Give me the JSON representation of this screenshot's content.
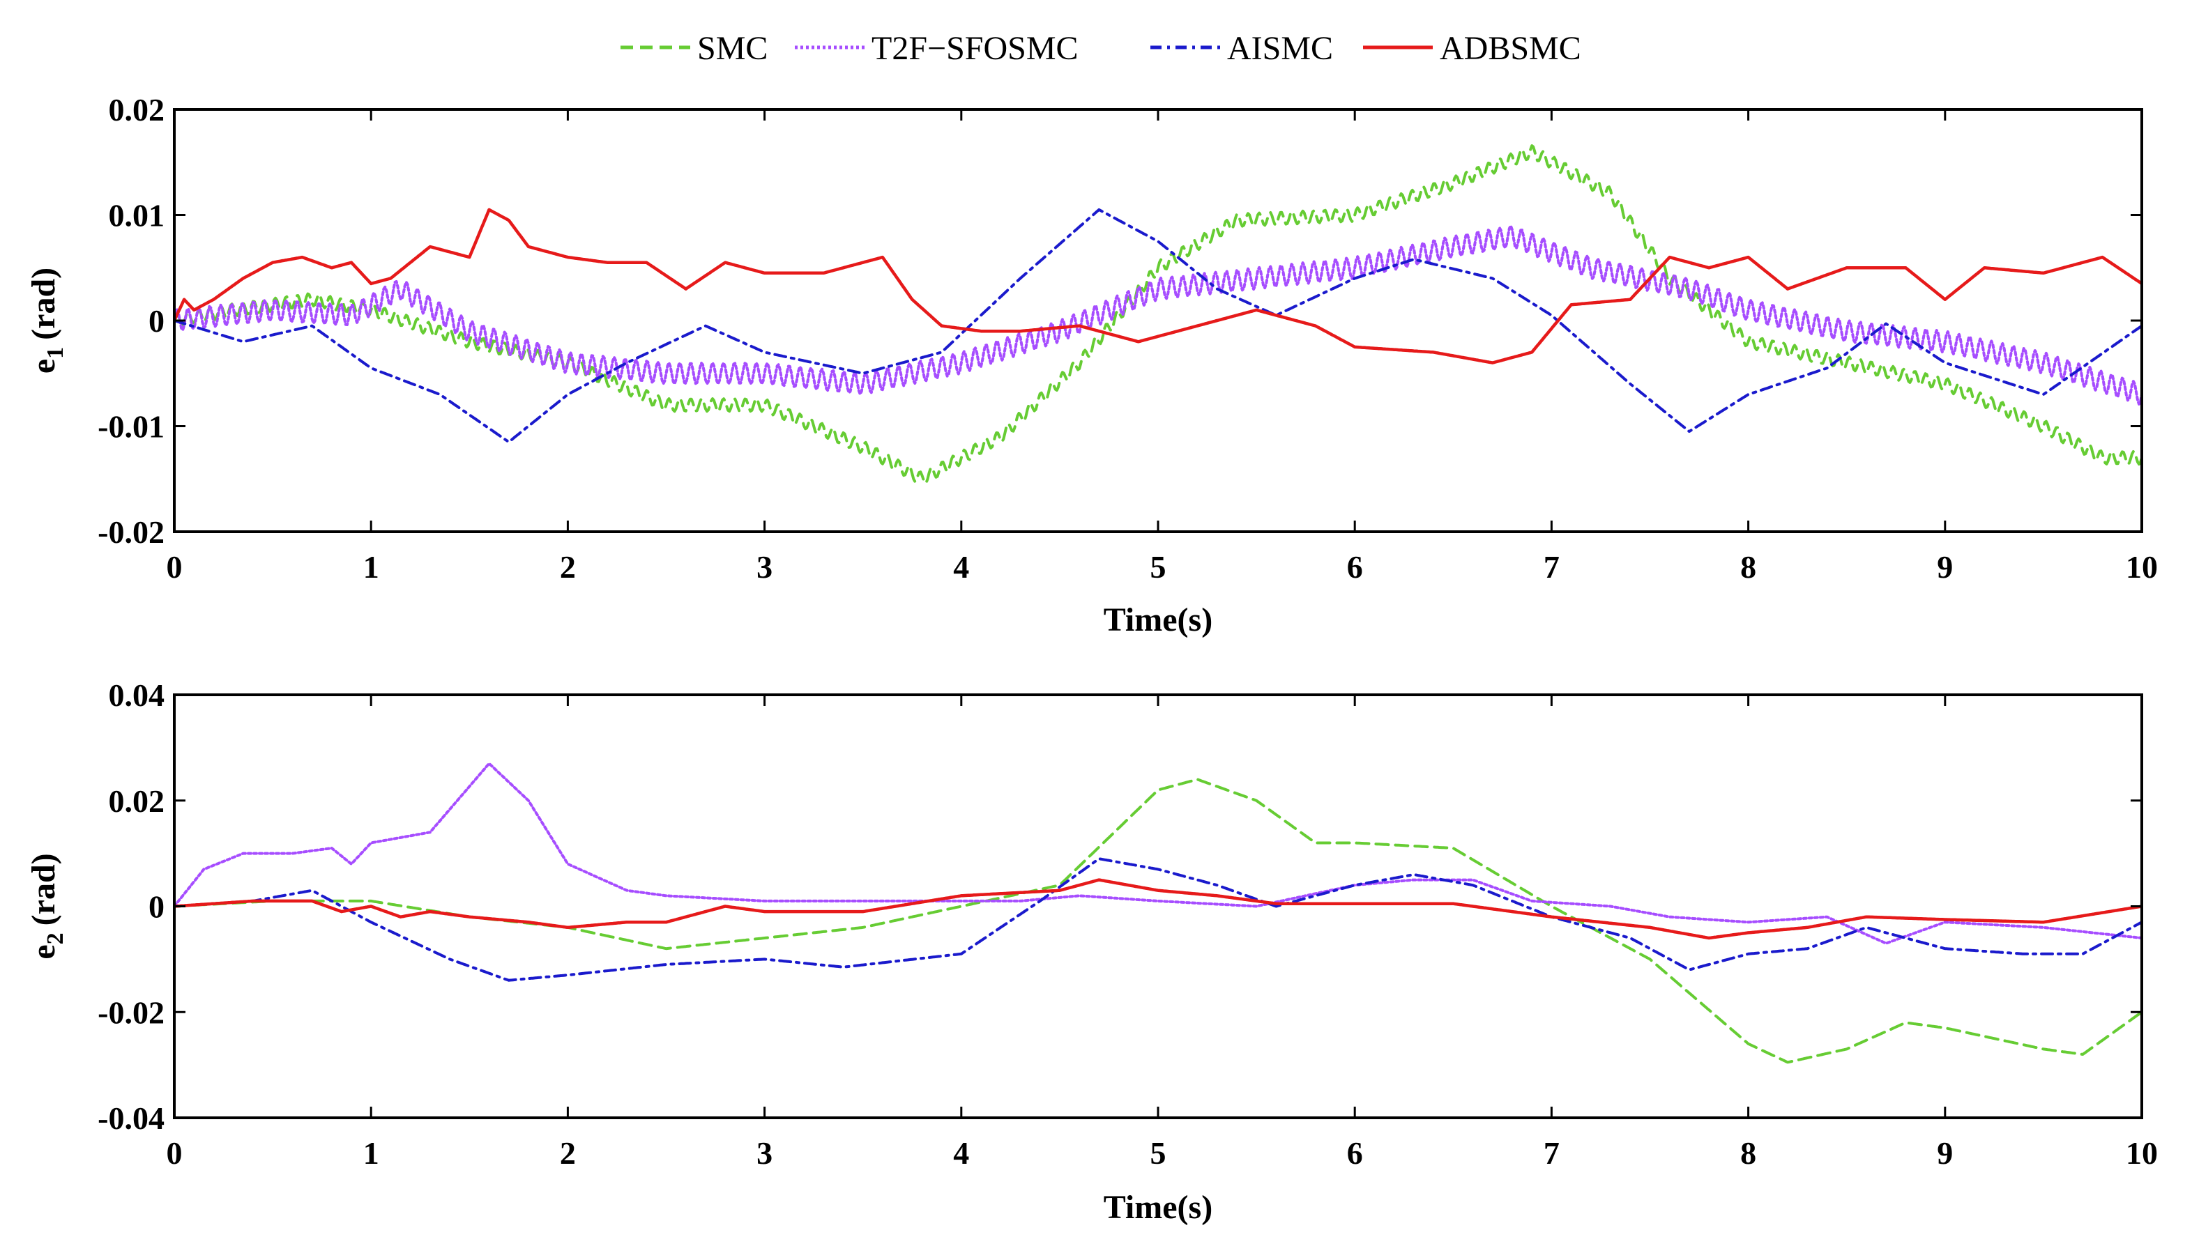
{
  "legend": [
    {
      "name": "SMC",
      "color": "#66cc33",
      "dash": "18,10"
    },
    {
      "name": "T2F−SFOSMC",
      "color": "#a64dff",
      "dash": "4,4"
    },
    {
      "name": "AISMC",
      "color": "#1a1acc",
      "dash": "16,8,4,8"
    },
    {
      "name": "ADBSMC",
      "color": "#e61a1a",
      "dash": ""
    }
  ],
  "chart_data": [
    {
      "type": "line",
      "id": "e1",
      "title": "",
      "xlabel": "Time(s)",
      "ylabel": "e",
      "ylabel_sub": "1",
      "ylabel_unit": "(rad)",
      "xlim": [
        0,
        10
      ],
      "ylim": [
        -0.02,
        0.02
      ],
      "xticks": [
        0,
        1,
        2,
        3,
        4,
        5,
        6,
        7,
        8,
        9,
        10
      ],
      "yticks": [
        -0.02,
        -0.01,
        0,
        0.01,
        0.02
      ],
      "ytick_labels": [
        "-0.02",
        "-0.01",
        "0",
        "0.01",
        "0.02"
      ],
      "series": [
        {
          "name": "SMC",
          "ripple": 0.0006,
          "x": [
            0,
            0.3,
            0.7,
            1.0,
            1.5,
            2.0,
            2.5,
            3.0,
            3.5,
            3.8,
            4.2,
            4.6,
            5.0,
            5.4,
            6.0,
            6.5,
            6.9,
            7.3,
            7.6,
            8.0,
            8.5,
            9.0,
            9.5,
            9.8,
            10.0
          ],
          "y": [
            0,
            0.001,
            0.002,
            0.001,
            -0.002,
            -0.004,
            -0.008,
            -0.008,
            -0.012,
            -0.015,
            -0.011,
            -0.004,
            0.005,
            0.0095,
            0.01,
            0.013,
            0.016,
            0.012,
            0.004,
            -0.002,
            -0.004,
            -0.006,
            -0.01,
            -0.013,
            -0.013
          ]
        },
        {
          "name": "T2F−SFOSMC",
          "ripple": 0.001,
          "x": [
            0,
            0.5,
            0.9,
            1.15,
            1.5,
            2.0,
            2.5,
            3.0,
            3.5,
            4.0,
            4.5,
            5.0,
            5.5,
            6.0,
            6.5,
            6.8,
            7.2,
            7.7,
            8.0,
            8.5,
            9.0,
            9.5,
            10.0
          ],
          "y": [
            0,
            0.001,
            0.0005,
            0.003,
            -0.001,
            -0.004,
            -0.005,
            -0.005,
            -0.006,
            -0.004,
            -0.001,
            0.003,
            0.004,
            0.005,
            0.007,
            0.008,
            0.005,
            0.003,
            0.001,
            -0.001,
            -0.002,
            -0.004,
            -0.007
          ]
        },
        {
          "name": "AISMC",
          "ripple": 0,
          "x": [
            0,
            0.35,
            0.7,
            1.0,
            1.35,
            1.7,
            2.0,
            2.3,
            2.7,
            3.0,
            3.5,
            3.9,
            4.3,
            4.7,
            5.0,
            5.3,
            5.6,
            6.0,
            6.3,
            6.7,
            7.0,
            7.4,
            7.7,
            8.0,
            8.4,
            8.7,
            9.0,
            9.5,
            10.0
          ],
          "y": [
            0,
            -0.002,
            -0.0005,
            -0.0045,
            -0.007,
            -0.0115,
            -0.007,
            -0.004,
            -0.0005,
            -0.003,
            -0.005,
            -0.003,
            0.004,
            0.0105,
            0.0075,
            0.003,
            0.0005,
            0.004,
            0.0058,
            0.004,
            0.0005,
            -0.006,
            -0.0105,
            -0.007,
            -0.0045,
            -0.0003,
            -0.004,
            -0.007,
            -0.0005
          ]
        },
        {
          "name": "ADBSMC",
          "ripple": 0,
          "x": [
            0,
            0.05,
            0.1,
            0.2,
            0.35,
            0.5,
            0.65,
            0.8,
            0.9,
            1.0,
            1.1,
            1.3,
            1.5,
            1.6,
            1.7,
            1.8,
            2.0,
            2.2,
            2.4,
            2.6,
            2.8,
            3.0,
            3.3,
            3.6,
            3.75,
            3.9,
            4.1,
            4.3,
            4.6,
            4.9,
            5.2,
            5.5,
            5.8,
            6.0,
            6.4,
            6.7,
            6.9,
            7.1,
            7.4,
            7.6,
            7.8,
            8.0,
            8.2,
            8.5,
            8.8,
            9.0,
            9.2,
            9.5,
            9.8,
            10.0
          ],
          "y": [
            0,
            0.002,
            0.001,
            0.002,
            0.004,
            0.0055,
            0.006,
            0.005,
            0.0055,
            0.0035,
            0.004,
            0.007,
            0.006,
            0.0105,
            0.0095,
            0.007,
            0.006,
            0.0055,
            0.0055,
            0.003,
            0.0055,
            0.0045,
            0.0045,
            0.006,
            0.002,
            -0.0005,
            -0.001,
            -0.001,
            -0.0005,
            -0.002,
            -0.0005,
            0.001,
            -0.0005,
            -0.0025,
            -0.003,
            -0.004,
            -0.003,
            0.0015,
            0.002,
            0.006,
            0.005,
            0.006,
            0.003,
            0.005,
            0.005,
            0.002,
            0.005,
            0.0045,
            0.006,
            0.0035
          ]
        }
      ]
    },
    {
      "type": "line",
      "id": "e2",
      "title": "",
      "xlabel": "Time(s)",
      "ylabel": "e",
      "ylabel_sub": "2",
      "ylabel_unit": "(rad)",
      "xlim": [
        0,
        10
      ],
      "ylim": [
        -0.04,
        0.04
      ],
      "xticks": [
        0,
        1,
        2,
        3,
        4,
        5,
        6,
        7,
        8,
        9,
        10
      ],
      "yticks": [
        -0.04,
        -0.02,
        0,
        0.02,
        0.04
      ],
      "ytick_labels": [
        "-0.04",
        "-0.02",
        "0",
        "0.02",
        "0.04"
      ],
      "series": [
        {
          "name": "SMC",
          "ripple": 0,
          "x": [
            0,
            0.5,
            1.0,
            1.5,
            2.0,
            2.5,
            3.0,
            3.5,
            4.0,
            4.5,
            5.0,
            5.2,
            5.5,
            5.8,
            6.0,
            6.5,
            7.0,
            7.5,
            8.0,
            8.2,
            8.5,
            8.8,
            9.0,
            9.5,
            9.7,
            10.0
          ],
          "y": [
            0,
            0.001,
            0.001,
            -0.002,
            -0.004,
            -0.008,
            -0.006,
            -0.004,
            0,
            0.004,
            0.022,
            0.024,
            0.02,
            0.012,
            0.012,
            0.011,
            0,
            -0.01,
            -0.026,
            -0.0295,
            -0.027,
            -0.022,
            -0.023,
            -0.027,
            -0.028,
            -0.02
          ]
        },
        {
          "name": "T2F−SFOSMC",
          "ripple": 0,
          "x": [
            0,
            0.15,
            0.35,
            0.6,
            0.8,
            0.9,
            1.0,
            1.3,
            1.6,
            1.8,
            2.0,
            2.3,
            2.5,
            3.0,
            3.5,
            4.0,
            4.3,
            4.6,
            5.0,
            5.5,
            6.0,
            6.3,
            6.6,
            6.9,
            7.3,
            7.6,
            8.0,
            8.4,
            8.7,
            9.0,
            9.5,
            10.0
          ],
          "y": [
            0,
            0.007,
            0.01,
            0.01,
            0.011,
            0.008,
            0.012,
            0.014,
            0.027,
            0.02,
            0.008,
            0.003,
            0.002,
            0.001,
            0.001,
            0.001,
            0.001,
            0.002,
            0.001,
            0,
            0.004,
            0.005,
            0.005,
            0.001,
            0,
            -0.002,
            -0.003,
            -0.002,
            -0.007,
            -0.003,
            -0.004,
            -0.006
          ]
        },
        {
          "name": "AISMC",
          "ripple": 0,
          "x": [
            0,
            0.4,
            0.7,
            1.0,
            1.4,
            1.7,
            2.0,
            2.5,
            3.0,
            3.4,
            4.0,
            4.4,
            4.7,
            5.0,
            5.3,
            5.6,
            6.0,
            6.3,
            6.6,
            7.0,
            7.4,
            7.7,
            8.0,
            8.3,
            8.6,
            9.0,
            9.4,
            9.7,
            10.0
          ],
          "y": [
            0,
            0.001,
            0.003,
            -0.003,
            -0.01,
            -0.014,
            -0.013,
            -0.011,
            -0.01,
            -0.0115,
            -0.009,
            0.001,
            0.009,
            0.007,
            0.004,
            0,
            0.004,
            0.006,
            0.004,
            -0.002,
            -0.006,
            -0.012,
            -0.009,
            -0.008,
            -0.004,
            -0.008,
            -0.009,
            -0.009,
            -0.003
          ]
        },
        {
          "name": "ADBSMC",
          "ripple": 0,
          "x": [
            0,
            0.4,
            0.7,
            0.85,
            1.0,
            1.15,
            1.3,
            1.5,
            1.8,
            2.0,
            2.3,
            2.5,
            2.8,
            3.0,
            3.5,
            4.0,
            4.5,
            4.7,
            5.0,
            5.3,
            5.6,
            6.0,
            6.5,
            7.0,
            7.5,
            7.8,
            8.0,
            8.3,
            8.6,
            9.0,
            9.5,
            10.0
          ],
          "y": [
            0,
            0.001,
            0.001,
            -0.001,
            0,
            -0.002,
            -0.001,
            -0.002,
            -0.003,
            -0.004,
            -0.003,
            -0.003,
            0,
            -0.001,
            -0.001,
            0.002,
            0.003,
            0.005,
            0.003,
            0.002,
            0.0005,
            0.0005,
            0.0005,
            -0.002,
            -0.004,
            -0.006,
            -0.005,
            -0.004,
            -0.002,
            -0.0025,
            -0.003,
            0
          ]
        }
      ]
    }
  ]
}
